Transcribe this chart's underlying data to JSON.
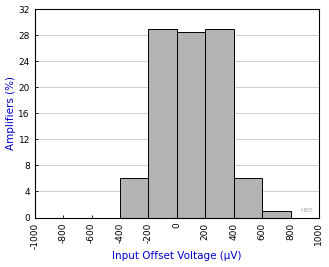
{
  "bin_edges": [
    -1000,
    -800,
    -600,
    -400,
    -200,
    0,
    200,
    400,
    600,
    800,
    1000
  ],
  "bar_heights": [
    0,
    0,
    0,
    6.0,
    29.0,
    28.5,
    29.0,
    6.0,
    1.0,
    0
  ],
  "bar_color": "#b3b3b3",
  "bar_edge_color": "#000000",
  "bar_linewidth": 0.7,
  "xlim": [
    -1000,
    1000
  ],
  "ylim": [
    0,
    32
  ],
  "xticks": [
    -1000,
    -800,
    -600,
    -400,
    -200,
    0,
    200,
    400,
    600,
    800,
    1000
  ],
  "yticks": [
    0,
    4,
    8,
    12,
    16,
    20,
    24,
    28,
    32
  ],
  "xlabel": "Input Offset Voltage (μV)",
  "ylabel": "Amplifiers (%)",
  "xlabel_color": "#0000cc",
  "ylabel_color": "#0000cc",
  "xlabel_fontsize": 7.5,
  "ylabel_fontsize": 7.5,
  "tick_fontsize": 6.5,
  "grid_color": "#c8c8c8",
  "grid_linewidth": 0.6,
  "background_color": "#ffffff",
  "spine_color": "#000000",
  "watermark": "HB5"
}
